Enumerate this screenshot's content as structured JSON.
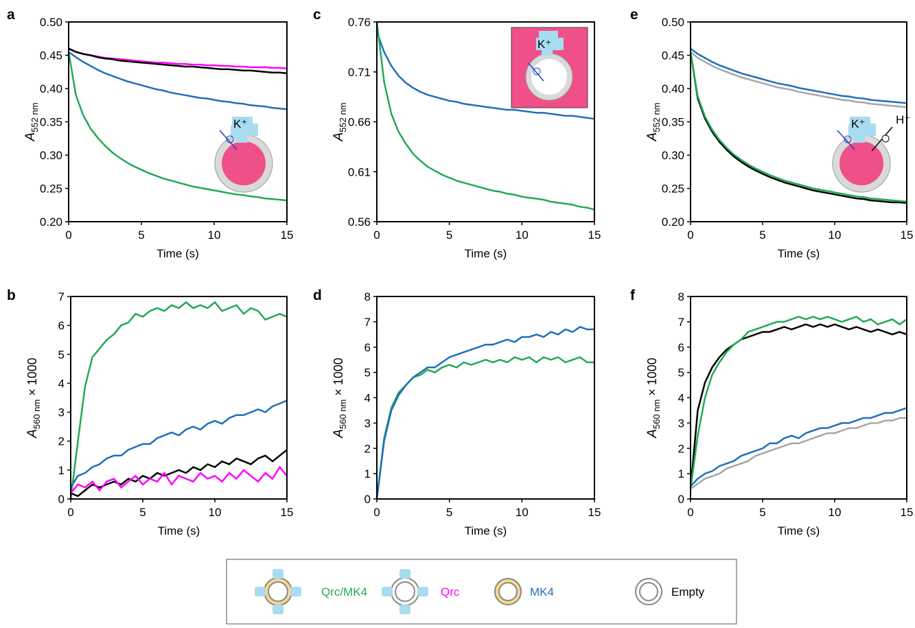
{
  "chart_data": [
    {
      "type": "line",
      "panel": "a",
      "x_label": "Time (s)",
      "y_label": "A",
      "y_label_sub": "552 nm",
      "inset_ion": "K⁺",
      "x": [
        0,
        0.5,
        1,
        1.5,
        2,
        2.5,
        3,
        3.5,
        4,
        4.5,
        5,
        5.5,
        6,
        6.5,
        7,
        7.5,
        8,
        8.5,
        9,
        9.5,
        10,
        10.5,
        11,
        11.5,
        12,
        12.5,
        13,
        13.5,
        14,
        14.5,
        15
      ],
      "xlim": [
        0,
        15
      ],
      "xticks": [
        0,
        5,
        10,
        15
      ],
      "ylim": [
        0.2,
        0.5
      ],
      "yticks": [
        {
          "value": 0.2,
          "label": "0.20"
        },
        0.25,
        {
          "value": 0.3,
          "label": "0.30"
        },
        0.35,
        {
          "value": 0.4,
          "label": "0.40"
        },
        0.45,
        {
          "value": 0.5,
          "label": "0.50"
        }
      ],
      "series": [
        {
          "color": "#ff00ff",
          "values": [
            0.46,
            0.455,
            0.452,
            0.45,
            0.448,
            0.446,
            0.445,
            0.444,
            0.443,
            0.442,
            0.441,
            0.44,
            0.439,
            0.439,
            0.438,
            0.437,
            0.437,
            0.436,
            0.436,
            0.435,
            0.435,
            0.434,
            0.434,
            0.433,
            0.433,
            0.432,
            0.432,
            0.432,
            0.431,
            0.431,
            0.43
          ]
        },
        {
          "color": "#000000",
          "values": [
            0.46,
            0.455,
            0.452,
            0.45,
            0.447,
            0.445,
            0.444,
            0.442,
            0.441,
            0.44,
            0.439,
            0.438,
            0.437,
            0.436,
            0.435,
            0.434,
            0.433,
            0.433,
            0.432,
            0.431,
            0.43,
            0.429,
            0.429,
            0.428,
            0.427,
            0.427,
            0.426,
            0.425,
            0.424,
            0.424,
            0.423
          ]
        },
        {
          "color": "#1f6fb8",
          "values": [
            0.455,
            0.447,
            0.44,
            0.434,
            0.428,
            0.423,
            0.419,
            0.415,
            0.411,
            0.408,
            0.405,
            0.402,
            0.399,
            0.397,
            0.394,
            0.392,
            0.39,
            0.388,
            0.386,
            0.385,
            0.383,
            0.381,
            0.38,
            0.378,
            0.377,
            0.375,
            0.374,
            0.373,
            0.371,
            0.37,
            0.369
          ]
        },
        {
          "color": "#21a957",
          "values": [
            0.455,
            0.39,
            0.36,
            0.34,
            0.326,
            0.314,
            0.304,
            0.296,
            0.289,
            0.283,
            0.278,
            0.273,
            0.269,
            0.265,
            0.262,
            0.259,
            0.256,
            0.253,
            0.251,
            0.249,
            0.247,
            0.245,
            0.243,
            0.241,
            0.24,
            0.238,
            0.237,
            0.235,
            0.234,
            0.233,
            0.232
          ]
        }
      ]
    },
    {
      "type": "line",
      "panel": "c",
      "x_label": "Time (s)",
      "y_label": "A",
      "y_label_sub": "552 nm",
      "inset_ion": "K⁺",
      "x": [
        0,
        0.5,
        1,
        1.5,
        2,
        2.5,
        3,
        3.5,
        4,
        4.5,
        5,
        5.5,
        6,
        6.5,
        7,
        7.5,
        8,
        8.5,
        9,
        9.5,
        10,
        10.5,
        11,
        11.5,
        12,
        12.5,
        13,
        13.5,
        14,
        14.5,
        15
      ],
      "xlim": [
        0,
        15
      ],
      "xticks": [
        0,
        5,
        10,
        15
      ],
      "ylim": [
        0.56,
        0.76
      ],
      "yticks": [
        0.56,
        0.61,
        0.66,
        0.71,
        0.76
      ],
      "series": [
        {
          "color": "#1f6fb8",
          "values": [
            0.75,
            0.73,
            0.716,
            0.706,
            0.699,
            0.694,
            0.69,
            0.687,
            0.685,
            0.683,
            0.681,
            0.68,
            0.678,
            0.677,
            0.676,
            0.675,
            0.674,
            0.673,
            0.672,
            0.672,
            0.671,
            0.67,
            0.669,
            0.669,
            0.668,
            0.667,
            0.666,
            0.666,
            0.665,
            0.664,
            0.663
          ]
        },
        {
          "color": "#21a957",
          "values": [
            0.76,
            0.7,
            0.668,
            0.65,
            0.638,
            0.628,
            0.621,
            0.615,
            0.611,
            0.607,
            0.604,
            0.601,
            0.599,
            0.597,
            0.595,
            0.593,
            0.591,
            0.59,
            0.588,
            0.587,
            0.585,
            0.584,
            0.583,
            0.582,
            0.58,
            0.579,
            0.578,
            0.577,
            0.575,
            0.574,
            0.572
          ]
        }
      ]
    },
    {
      "type": "line",
      "panel": "e",
      "x_label": "Time (s)",
      "y_label": "A",
      "y_label_sub": "552 nm",
      "inset_ion": "K⁺",
      "inset_ion_2": "H⁺",
      "x": [
        0,
        0.5,
        1,
        1.5,
        2,
        2.5,
        3,
        3.5,
        4,
        4.5,
        5,
        5.5,
        6,
        6.5,
        7,
        7.5,
        8,
        8.5,
        9,
        9.5,
        10,
        10.5,
        11,
        11.5,
        12,
        12.5,
        13,
        13.5,
        14,
        14.5,
        15
      ],
      "xlim": [
        0,
        15
      ],
      "xticks": [
        0,
        5,
        10,
        15
      ],
      "ylim": [
        0.2,
        0.5
      ],
      "yticks": [
        {
          "value": 0.2,
          "label": "0.20"
        },
        0.25,
        {
          "value": 0.3,
          "label": "0.30"
        },
        0.35,
        {
          "value": 0.4,
          "label": "0.40"
        },
        0.45,
        {
          "value": 0.5,
          "label": "0.50"
        }
      ],
      "series": [
        {
          "color": "#1f6fb8",
          "values": [
            0.46,
            0.452,
            0.446,
            0.44,
            0.435,
            0.431,
            0.427,
            0.423,
            0.42,
            0.417,
            0.414,
            0.411,
            0.408,
            0.406,
            0.404,
            0.401,
            0.399,
            0.397,
            0.395,
            0.393,
            0.391,
            0.389,
            0.388,
            0.386,
            0.385,
            0.383,
            0.382,
            0.381,
            0.38,
            0.379,
            0.378
          ]
        },
        {
          "color": "#a6a6a6",
          "values": [
            0.455,
            0.446,
            0.44,
            0.434,
            0.429,
            0.425,
            0.421,
            0.417,
            0.414,
            0.411,
            0.408,
            0.405,
            0.402,
            0.4,
            0.398,
            0.395,
            0.393,
            0.391,
            0.389,
            0.387,
            0.385,
            0.383,
            0.382,
            0.38,
            0.379,
            0.377,
            0.376,
            0.375,
            0.374,
            0.373,
            0.372
          ]
        },
        {
          "color": "#000000",
          "values": [
            0.455,
            0.385,
            0.355,
            0.335,
            0.32,
            0.308,
            0.298,
            0.29,
            0.283,
            0.277,
            0.272,
            0.267,
            0.263,
            0.259,
            0.256,
            0.253,
            0.25,
            0.247,
            0.245,
            0.243,
            0.241,
            0.239,
            0.237,
            0.235,
            0.234,
            0.232,
            0.231,
            0.23,
            0.229,
            0.229,
            0.228
          ]
        },
        {
          "color": "#21a957",
          "values": [
            0.455,
            0.388,
            0.358,
            0.338,
            0.323,
            0.311,
            0.301,
            0.293,
            0.286,
            0.28,
            0.275,
            0.27,
            0.266,
            0.262,
            0.259,
            0.256,
            0.253,
            0.25,
            0.248,
            0.246,
            0.244,
            0.242,
            0.24,
            0.238,
            0.237,
            0.235,
            0.234,
            0.233,
            0.232,
            0.231,
            0.23
          ]
        }
      ]
    },
    {
      "type": "line",
      "panel": "b",
      "x_label": "Time (s)",
      "y_label": "A",
      "y_label_sub": "560 nm",
      "y_label_suffix": "× 1000",
      "x": [
        0,
        0.5,
        1,
        1.5,
        2,
        2.5,
        3,
        3.5,
        4,
        4.5,
        5,
        5.5,
        6,
        6.5,
        7,
        7.5,
        8,
        8.5,
        9,
        9.5,
        10,
        10.5,
        11,
        11.5,
        12,
        12.5,
        13,
        13.5,
        14,
        14.5,
        15
      ],
      "xlim": [
        0,
        15
      ],
      "xticks": [
        0,
        5,
        10,
        15
      ],
      "ylim": [
        0,
        7
      ],
      "yticks": [
        0,
        1,
        2,
        3,
        4,
        5,
        6,
        7
      ],
      "series": [
        {
          "color": "#21a957",
          "values": [
            0,
            2.0,
            3.9,
            4.9,
            5.2,
            5.5,
            5.7,
            6.0,
            6.1,
            6.4,
            6.3,
            6.5,
            6.6,
            6.5,
            6.7,
            6.6,
            6.8,
            6.6,
            6.7,
            6.6,
            6.8,
            6.5,
            6.6,
            6.7,
            6.4,
            6.6,
            6.5,
            6.2,
            6.3,
            6.4,
            6.3
          ]
        },
        {
          "color": "#1f6fb8",
          "values": [
            0.4,
            0.8,
            0.9,
            1.1,
            1.2,
            1.4,
            1.5,
            1.5,
            1.7,
            1.8,
            1.9,
            1.9,
            2.1,
            2.2,
            2.3,
            2.2,
            2.4,
            2.5,
            2.4,
            2.6,
            2.7,
            2.6,
            2.8,
            2.9,
            2.9,
            3.0,
            3.1,
            3.0,
            3.2,
            3.3,
            3.4
          ]
        },
        {
          "color": "#000000",
          "values": [
            0.2,
            0.1,
            0.3,
            0.5,
            0.4,
            0.5,
            0.6,
            0.5,
            0.7,
            0.6,
            0.8,
            0.7,
            0.9,
            0.8,
            0.9,
            1.0,
            0.9,
            1.1,
            1.0,
            1.2,
            1.1,
            1.3,
            1.2,
            1.4,
            1.3,
            1.2,
            1.4,
            1.5,
            1.3,
            1.5,
            1.7
          ]
        },
        {
          "color": "#ff00ff",
          "values": [
            0.2,
            0.5,
            0.4,
            0.6,
            0.3,
            0.6,
            0.7,
            0.4,
            0.6,
            0.8,
            0.5,
            0.7,
            0.6,
            0.9,
            0.5,
            0.8,
            0.7,
            0.6,
            0.9,
            0.7,
            0.8,
            0.6,
            0.9,
            0.7,
            1.0,
            0.8,
            0.6,
            0.9,
            0.7,
            1.1,
            0.8
          ]
        }
      ]
    },
    {
      "type": "line",
      "panel": "d",
      "x_label": "Time (s)",
      "y_label": "A",
      "y_label_sub": "560 nm",
      "y_label_suffix": "× 1000",
      "x": [
        0,
        0.5,
        1,
        1.5,
        2,
        2.5,
        3,
        3.5,
        4,
        4.5,
        5,
        5.5,
        6,
        6.5,
        7,
        7.5,
        8,
        8.5,
        9,
        9.5,
        10,
        10.5,
        11,
        11.5,
        12,
        12.5,
        13,
        13.5,
        14,
        14.5,
        15
      ],
      "xlim": [
        0,
        15
      ],
      "xticks": [
        0,
        5,
        10,
        15
      ],
      "ylim": [
        0,
        8
      ],
      "yticks": [
        0,
        1,
        2,
        3,
        4,
        5,
        6,
        7,
        8
      ],
      "series": [
        {
          "color": "#21a957",
          "values": [
            0,
            2.4,
            3.6,
            4.2,
            4.5,
            4.8,
            4.9,
            5.1,
            5.0,
            5.2,
            5.3,
            5.2,
            5.4,
            5.3,
            5.4,
            5.5,
            5.4,
            5.5,
            5.4,
            5.6,
            5.5,
            5.6,
            5.4,
            5.6,
            5.5,
            5.6,
            5.4,
            5.5,
            5.6,
            5.4,
            5.4
          ]
        },
        {
          "color": "#1f6fb8",
          "values": [
            0,
            2.3,
            3.5,
            4.1,
            4.5,
            4.8,
            5.0,
            5.2,
            5.2,
            5.4,
            5.6,
            5.7,
            5.8,
            5.9,
            6.0,
            6.1,
            6.1,
            6.2,
            6.3,
            6.2,
            6.4,
            6.4,
            6.5,
            6.4,
            6.6,
            6.5,
            6.7,
            6.6,
            6.8,
            6.7,
            6.7
          ]
        }
      ]
    },
    {
      "type": "line",
      "panel": "f",
      "x_label": "Time (s)",
      "y_label": "A",
      "y_label_sub": "560 nm",
      "y_label_suffix": "× 1000",
      "x": [
        0,
        0.5,
        1,
        1.5,
        2,
        2.5,
        3,
        3.5,
        4,
        4.5,
        5,
        5.5,
        6,
        6.5,
        7,
        7.5,
        8,
        8.5,
        9,
        9.5,
        10,
        10.5,
        11,
        11.5,
        12,
        12.5,
        13,
        13.5,
        14,
        14.5,
        15
      ],
      "xlim": [
        0,
        15
      ],
      "xticks": [
        0,
        5,
        10,
        15
      ],
      "ylim": [
        0,
        8
      ],
      "yticks": [
        0,
        1,
        2,
        3,
        4,
        5,
        6,
        7,
        8
      ],
      "series": [
        {
          "color": "#000000",
          "values": [
            0.4,
            3.5,
            4.6,
            5.2,
            5.6,
            5.9,
            6.1,
            6.3,
            6.4,
            6.5,
            6.6,
            6.6,
            6.7,
            6.8,
            6.7,
            6.8,
            6.9,
            6.8,
            6.9,
            6.8,
            6.9,
            6.8,
            6.7,
            6.8,
            6.7,
            6.6,
            6.7,
            6.6,
            6.5,
            6.6,
            6.5
          ]
        },
        {
          "color": "#21a957",
          "values": [
            0.4,
            2.5,
            4.0,
            4.9,
            5.4,
            5.8,
            6.1,
            6.3,
            6.6,
            6.7,
            6.8,
            6.9,
            7.0,
            7.0,
            7.1,
            7.2,
            7.1,
            7.2,
            7.1,
            7.2,
            7.1,
            7.0,
            7.1,
            7.2,
            7.0,
            7.1,
            6.9,
            7.0,
            7.1,
            6.9,
            7.1
          ]
        },
        {
          "color": "#a6a6a6",
          "values": [
            0.4,
            0.6,
            0.8,
            0.9,
            1.0,
            1.2,
            1.3,
            1.4,
            1.5,
            1.7,
            1.8,
            1.9,
            2.0,
            2.1,
            2.2,
            2.2,
            2.3,
            2.4,
            2.5,
            2.6,
            2.6,
            2.7,
            2.8,
            2.8,
            2.9,
            3.0,
            3.0,
            3.1,
            3.1,
            3.2,
            3.2
          ]
        },
        {
          "color": "#1f6fb8",
          "values": [
            0.5,
            0.8,
            1.0,
            1.1,
            1.3,
            1.4,
            1.5,
            1.7,
            1.8,
            1.9,
            2.0,
            2.2,
            2.2,
            2.4,
            2.5,
            2.4,
            2.6,
            2.7,
            2.8,
            2.8,
            2.9,
            3.0,
            3.0,
            3.1,
            3.2,
            3.2,
            3.3,
            3.4,
            3.4,
            3.5,
            3.6
          ]
        }
      ]
    }
  ],
  "legend": [
    {
      "label": "Qrc/MK4",
      "color": "#21a957"
    },
    {
      "label": "Qrc",
      "color": "#ff00ff"
    },
    {
      "label": "MK4",
      "color": "#1f6fb8"
    },
    {
      "label": "Empty",
      "color": "#000000"
    }
  ]
}
